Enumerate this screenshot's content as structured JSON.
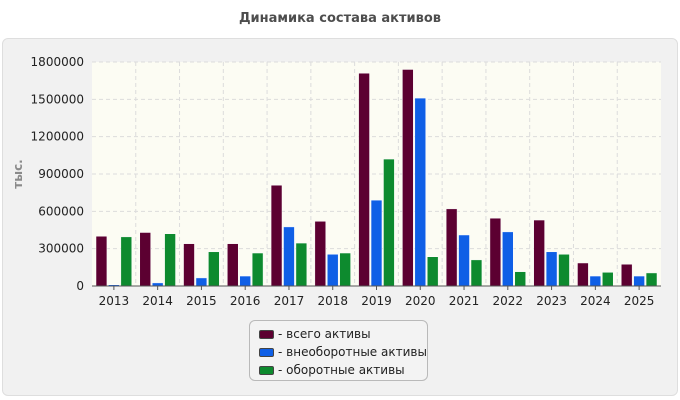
{
  "colors": {
    "total": "#5c0031",
    "noncurrent": "#0f5fe6",
    "current": "#0d8a2e",
    "plot_background": "#fcfcf3",
    "grid": "#dcdcdc"
  },
  "chart_data": {
    "type": "bar",
    "title": "Динамика состава активов",
    "ylabel": "тыс.",
    "xlabel": "",
    "categories": [
      "2013",
      "2014",
      "2015",
      "2016",
      "2017",
      "2018",
      "2019",
      "2020",
      "2021",
      "2022",
      "2023",
      "2024",
      "2025"
    ],
    "ylim": [
      0,
      1800000
    ],
    "yticks": [
      "0",
      "300000",
      "600000",
      "900000",
      "1200000",
      "1500000",
      "1800000"
    ],
    "grid": true,
    "legend_position": "bottom",
    "series": [
      {
        "name": "- всего активы",
        "color": "#5c0031",
        "values": [
          400000,
          430000,
          340000,
          340000,
          810000,
          520000,
          1710000,
          1740000,
          620000,
          545000,
          530000,
          185000,
          175000
        ]
      },
      {
        "name": "- внеоборотные активы",
        "color": "#0f5fe6",
        "values": [
          10000,
          25000,
          65000,
          80000,
          475000,
          255000,
          690000,
          1510000,
          410000,
          435000,
          275000,
          80000,
          80000
        ]
      },
      {
        "name": "- оборотные активы",
        "color": "#0d8a2e",
        "values": [
          395000,
          420000,
          275000,
          265000,
          345000,
          265000,
          1020000,
          235000,
          210000,
          115000,
          255000,
          110000,
          105000
        ]
      }
    ]
  }
}
